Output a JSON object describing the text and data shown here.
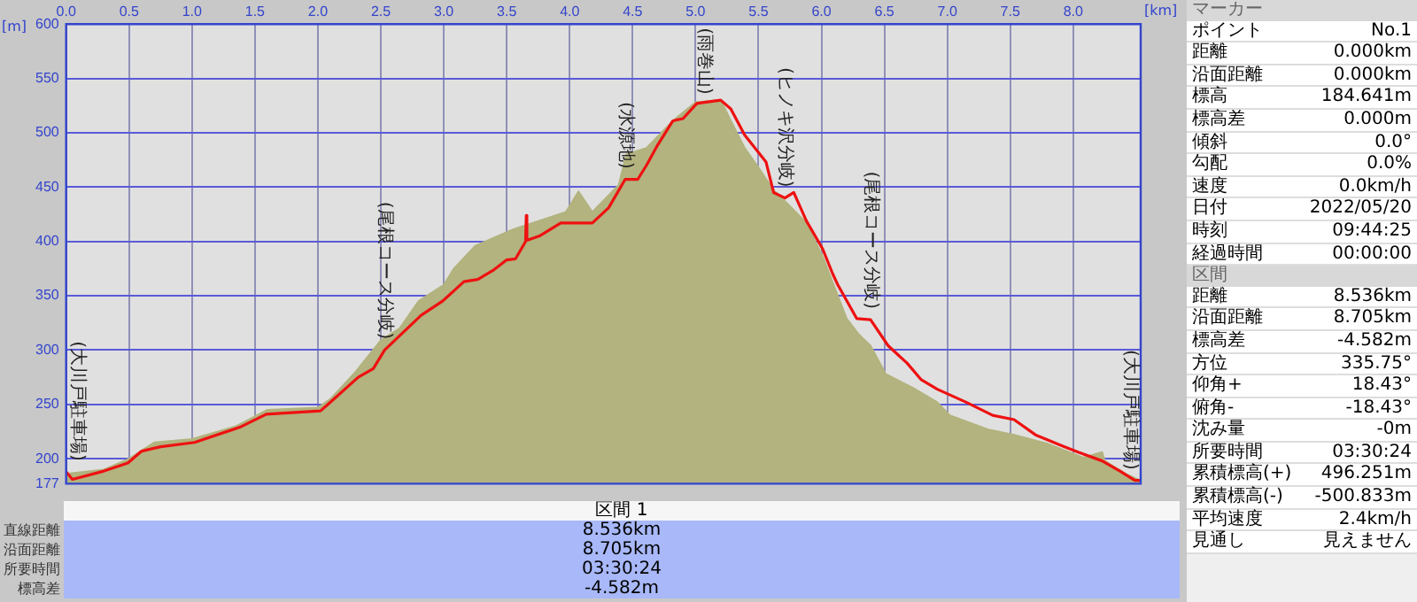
{
  "chart_data": {
    "type": "area",
    "xlabel": "[km]",
    "ylabel": "[m]",
    "xlim": [
      0,
      8.536
    ],
    "ylim": [
      177,
      600
    ],
    "xticks": [
      {
        "value": 0,
        "label": "0.0"
      },
      {
        "value": 0.5,
        "label": "0.5"
      },
      {
        "value": 1,
        "label": "1.0"
      },
      {
        "value": 1.5,
        "label": "1.5"
      },
      {
        "value": 2,
        "label": "2.0"
      },
      {
        "value": 2.5,
        "label": "2.5"
      },
      {
        "value": 3,
        "label": "3.0"
      },
      {
        "value": 3.5,
        "label": "3.5"
      },
      {
        "value": 4,
        "label": "4.0"
      },
      {
        "value": 4.5,
        "label": "4.5"
      },
      {
        "value": 5,
        "label": "5.0"
      },
      {
        "value": 5.5,
        "label": "5.5"
      },
      {
        "value": 6,
        "label": "6.0"
      },
      {
        "value": 6.5,
        "label": "6.5"
      },
      {
        "value": 7,
        "label": "7.0"
      },
      {
        "value": 7.5,
        "label": "7.5"
      },
      {
        "value": 8,
        "label": "8.0"
      }
    ],
    "yticks": [
      177,
      200,
      250,
      300,
      350,
      400,
      450,
      500,
      550,
      600
    ],
    "grid": true,
    "legend": false,
    "series": [
      {
        "type": "area",
        "color": "#b2b37e",
        "x": [
          0,
          0.3,
          0.5,
          0.7,
          1.0,
          1.35,
          1.6,
          2.0,
          2.1,
          2.3,
          2.5,
          2.65,
          2.8,
          3.0,
          3.08,
          3.25,
          3.55,
          3.97,
          4.07,
          4.18,
          4.39,
          4.45,
          4.61,
          4.82,
          5.0,
          5.2,
          5.28,
          5.39,
          5.5,
          5.62,
          5.71,
          5.88,
          6.01,
          6.2,
          6.3,
          6.39,
          6.51,
          6.73,
          6.92,
          7.02,
          7.32,
          7.53,
          7.79,
          8.08,
          8.23,
          8.25,
          8.42,
          8.53
        ],
        "values": [
          186,
          190,
          200,
          215,
          218,
          230,
          245,
          247,
          255,
          280,
          309,
          320,
          345,
          360,
          375,
          396,
          411,
          427,
          446,
          427,
          452,
          480,
          486,
          511,
          528,
          530,
          511,
          486,
          468,
          447,
          437,
          417,
          386,
          329,
          314,
          304,
          278,
          265,
          252,
          240,
          227,
          222,
          214,
          201,
          206,
          198,
          186,
          180
        ]
      },
      {
        "type": "line",
        "color": "#ee1111",
        "x": [
          0,
          0.05,
          0.28,
          0.49,
          0.6,
          0.75,
          1.02,
          1.38,
          1.59,
          2.02,
          2.08,
          2.32,
          2.44,
          2.53,
          2.82,
          2.99,
          3.16,
          3.27,
          3.4,
          3.5,
          3.57,
          3.65,
          3.655,
          3.66,
          3.76,
          3.93,
          4.18,
          4.31,
          4.44,
          4.54,
          4.61,
          4.69,
          4.82,
          4.9,
          5.01,
          5.07,
          5.2,
          5.28,
          5.39,
          5.56,
          5.62,
          5.71,
          5.78,
          5.88,
          6.01,
          6.09,
          6.13,
          6.28,
          6.39,
          6.53,
          6.68,
          6.79,
          6.92,
          7.15,
          7.36,
          7.53,
          7.7,
          7.91,
          8.04,
          8.23,
          8.38,
          8.49,
          8.53
        ],
        "values": [
          188,
          181,
          188,
          196,
          207,
          211,
          215,
          229,
          241,
          244,
          250,
          275,
          283,
          300,
          332,
          345,
          363,
          365,
          374,
          383,
          384,
          400,
          424,
          401,
          405,
          417,
          417,
          431,
          457,
          457,
          470,
          487,
          511,
          513,
          527,
          528,
          530,
          522,
          498,
          473,
          445,
          440,
          445,
          419,
          393,
          370,
          360,
          329,
          328,
          304,
          288,
          273,
          264,
          252,
          240,
          236,
          222,
          212,
          206,
          198,
          188,
          180,
          180
        ]
      }
    ],
    "annotations": [
      {
        "text": "(大川戸駐車場)",
        "x": 0,
        "y": 188
      },
      {
        "text": "(尾根コース分岐)",
        "x": 2.53,
        "y": 300
      },
      {
        "text": "(水源地)",
        "x": 4.44,
        "y": 457
      },
      {
        "text": "(雨巻山)",
        "x": 5.07,
        "y": 528
      },
      {
        "text": "(ヒノキ沢分岐)",
        "x": 5.71,
        "y": 440
      },
      {
        "text": "(尾根コース分岐)",
        "x": 6.39,
        "y": 328
      },
      {
        "text": "(大川戸駐車場)",
        "x": 8.53,
        "y": 180
      },
      "マーカー",
      "ポイント",
      "No.1",
      "距離",
      "0.000km",
      "沿面距離",
      "0.000km",
      "標高",
      "184.641m",
      "標高差",
      "0.000m",
      "傾斜",
      "0.0°",
      "勾配",
      "0.0%",
      "速度",
      "0.0km/h",
      "日付",
      "2022/05/20",
      "時刻",
      "09:44:25",
      "経過時間",
      "00:00:00",
      "区間",
      "距離",
      "8.536km",
      "沿面距離",
      "8.705km",
      "標高差",
      "-4.582m",
      "方位",
      "335.75°",
      "仰角+",
      "18.43°",
      "俯角-",
      "-18.43°",
      "沈み量",
      "-0m",
      "所要時間",
      "03:30:24",
      "累積標高(+)",
      "496.251m",
      "累積標高(-)",
      "-500.833m",
      "平均速度",
      "2.4km/h",
      "見通し",
      "見えません",
      "区間 1",
      "直線距離",
      "8.536km",
      "沿面距離",
      "8.705km",
      "所要時間",
      "03:30:24",
      "標高差",
      "-4.582m"
    ]
  }
}
